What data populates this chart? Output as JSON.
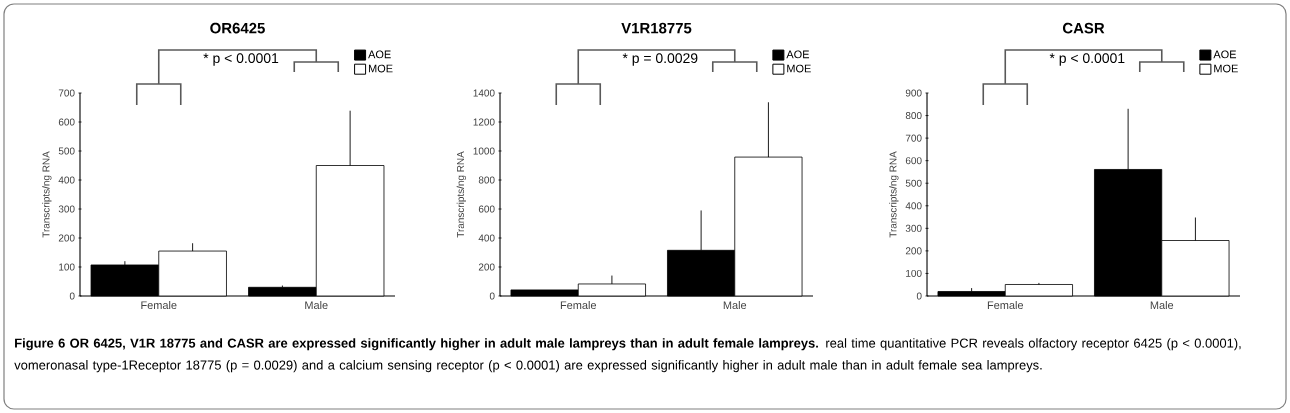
{
  "chart_data": [
    {
      "type": "bar",
      "title": "OR6425",
      "categories": [
        "Female",
        "Male"
      ],
      "ylabel": "Transcripts/ng RNA",
      "ylim": [
        0,
        700
      ],
      "yticks": [
        0,
        100,
        200,
        300,
        400,
        500,
        600,
        700
      ],
      "legend": "top right",
      "series": [
        {
          "name": "AOE",
          "color": "#000000",
          "values": [
            107,
            30
          ],
          "errors": [
            [
              107,
              120
            ],
            [
              30,
              36
            ]
          ]
        },
        {
          "name": "MOE",
          "color": "#ffffff",
          "values": [
            155,
            450
          ],
          "errors": [
            [
              155,
              182
            ],
            [
              450,
              639
            ]
          ]
        }
      ],
      "annotations": [
        "* p < 0.0001",
        "**Figure 6 OR 6425, V1R 18775 and CASR are expressed significantly higher in adult male lampreys than in adult female lampreys.** real time quantitative PCR reveals olfactory receptor 6425 (p < 0.0001), vomeronasal type-1Receptor 18775 (p = 0.0029) and a calcium sensing receptor (p < 0.0001) are expressed significantly higher in adult male than in adult female sea lampreys."
      ]
    },
    {
      "type": "bar",
      "title": "V1R18775",
      "categories": [
        "Female",
        "Male"
      ],
      "ylabel": "Transcripts/ng RNA",
      "ylim": [
        0,
        1400
      ],
      "yticks": [
        0,
        200,
        400,
        600,
        800,
        1000,
        1200,
        1400
      ],
      "legend": "top right",
      "series": [
        {
          "name": "AOE",
          "color": "#000000",
          "values": [
            42,
            315
          ],
          "errors": [
            null,
            [
              315,
              590
            ]
          ]
        },
        {
          "name": "MOE",
          "color": "#ffffff",
          "values": [
            83,
            958
          ],
          "errors": [
            [
              83,
              141
            ],
            [
              958,
              1336
            ]
          ]
        }
      ],
      "annotations": [
        "* p = 0.0029"
      ]
    },
    {
      "type": "bar",
      "title": "CASR",
      "categories": [
        "Female",
        "Male"
      ],
      "ylabel": "Transcripts/ng RNA",
      "ylim": [
        0,
        900
      ],
      "yticks": [
        0,
        100,
        200,
        300,
        400,
        500,
        600,
        700,
        800,
        900
      ],
      "legend": "top right",
      "series": [
        {
          "name": "AOE",
          "color": "#000000",
          "values": [
            20,
            561
          ],
          "errors": [
            [
              20,
              35
            ],
            [
              561,
              830
            ]
          ]
        },
        {
          "name": "MOE",
          "color": "#ffffff",
          "values": [
            51,
            246
          ],
          "errors": [
            [
              51,
              58
            ],
            [
              246,
              348
            ]
          ]
        }
      ],
      "annotations": [
        "* p < 0.0001"
      ]
    }
  ]
}
